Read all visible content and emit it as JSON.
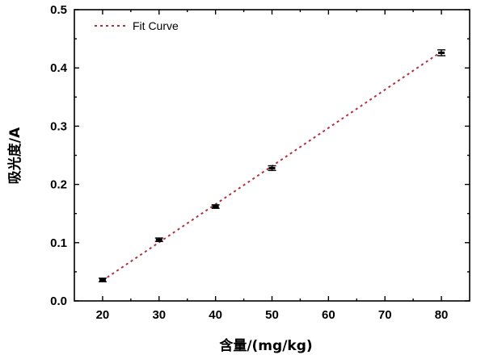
{
  "chart_data": {
    "type": "scatter",
    "xlabel": "含量/(mg/kg)",
    "ylabel": "吸光度/A",
    "xlim": [
      15,
      85
    ],
    "ylim": [
      0.0,
      0.5
    ],
    "x_ticks": [
      "20",
      "30",
      "40",
      "50",
      "60",
      "70",
      "80"
    ],
    "y_ticks": [
      "0.0",
      "0.1",
      "0.2",
      "0.3",
      "0.4",
      "0.5"
    ],
    "grid": false,
    "legend_position": "top-left",
    "series": [
      {
        "name": "",
        "x": [
          20,
          30,
          40,
          50,
          80
        ],
        "y": [
          0.036,
          0.105,
          0.162,
          0.228,
          0.426
        ],
        "error": [
          0.003,
          0.003,
          0.003,
          0.004,
          0.005
        ]
      },
      {
        "name": "Fit Curve",
        "x": [
          20,
          80
        ],
        "y": [
          0.035,
          0.428
        ],
        "style": "dotted",
        "color": "#b03040"
      }
    ]
  }
}
